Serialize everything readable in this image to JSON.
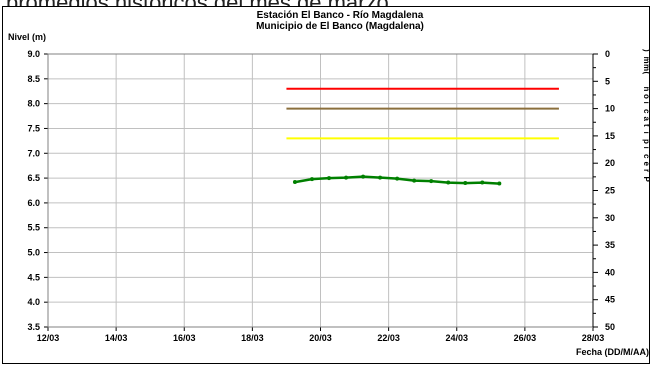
{
  "top_text": "promedios históricos del mes de marzo.",
  "chart_data": {
    "type": "line",
    "title": "Estación El Banco - Río Magdalena",
    "subtitle": "Municipio de El Banco (Magdalena)",
    "ylabel": "Nivel (m)",
    "xlabel": "Fecha (DD/M/AA)",
    "y2label": "Precipitación (mm)",
    "x_start": "12/03",
    "x_end": "28/03",
    "x_ticks": [
      "12/03",
      "14/03",
      "16/03",
      "18/03",
      "20/03",
      "22/03",
      "24/03",
      "26/03",
      "28/03"
    ],
    "y_ticks": [
      "9.0",
      "8.5",
      "8.0",
      "7.5",
      "7.0",
      "6.5",
      "6.0",
      "5.5",
      "5.0",
      "4.5",
      "4.0",
      "3.5"
    ],
    "y2_ticks": [
      "0",
      "5",
      "10",
      "15",
      "20",
      "25",
      "30",
      "35",
      "40",
      "45",
      "50"
    ],
    "ylim": [
      3.5,
      9.0
    ],
    "y2lim": [
      0,
      50
    ],
    "grid": true,
    "thresholds": [
      {
        "value": 8.3,
        "color": "#ff0000",
        "x_start": "19/03",
        "x_end": "27/03"
      },
      {
        "value": 7.9,
        "color": "#8b6f3c",
        "x_start": "19/03",
        "x_end": "27/03"
      },
      {
        "value": 7.3,
        "color": "#ffff00",
        "x_start": "19/03",
        "x_end": "27/03"
      }
    ],
    "series": [
      {
        "color": "#008000",
        "x": [
          "19/03 06:00",
          "19/03 18:00",
          "20/03 06:00",
          "20/03 18:00",
          "21/03 06:00",
          "21/03 18:00",
          "22/03 06:00",
          "22/03 18:00",
          "23/03 06:00",
          "23/03 18:00",
          "24/03 06:00",
          "24/03 18:00",
          "25/03 06:00"
        ],
        "values": [
          6.42,
          6.48,
          6.5,
          6.51,
          6.53,
          6.51,
          6.49,
          6.45,
          6.44,
          6.41,
          6.4,
          6.41,
          6.39
        ]
      }
    ]
  }
}
